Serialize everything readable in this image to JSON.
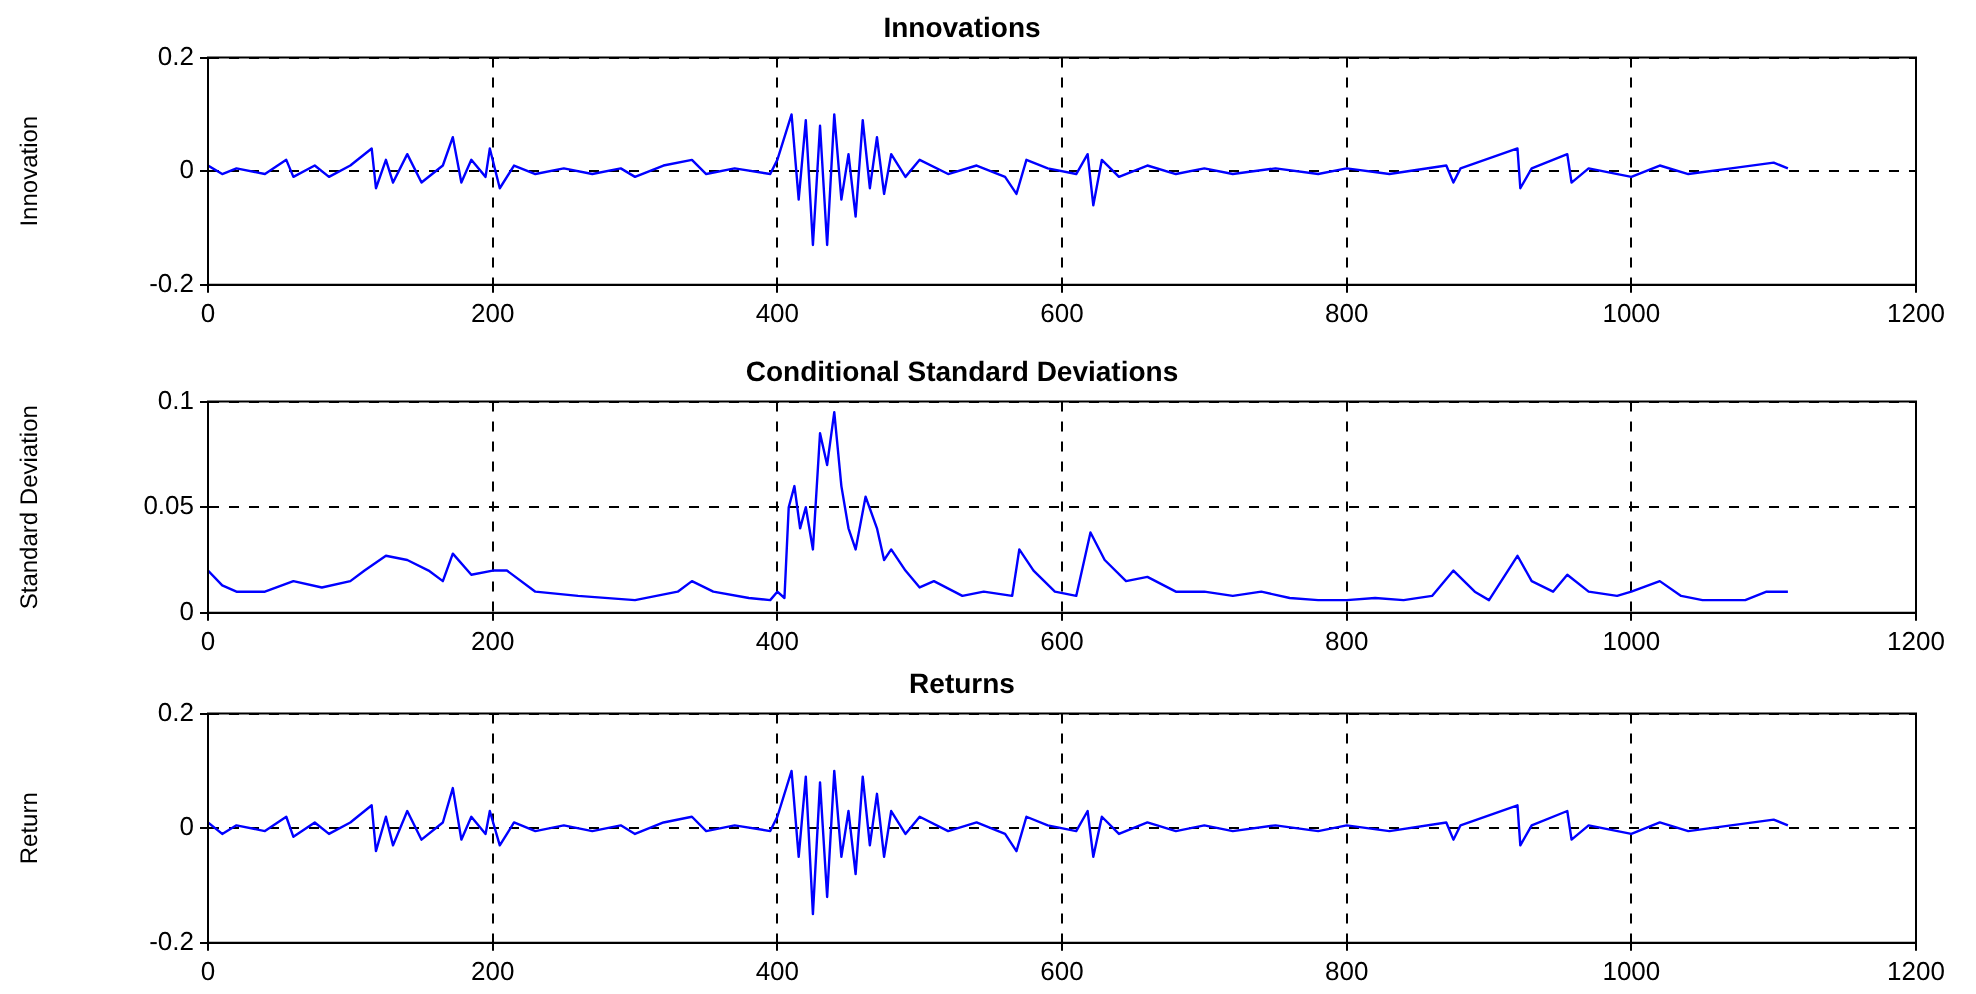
{
  "chart_data": [
    {
      "type": "line",
      "title": "Innovations",
      "ylabel": "Innovation",
      "xlim": [
        0,
        1200
      ],
      "xticks": [
        0,
        200,
        400,
        600,
        800,
        1000,
        1200
      ],
      "ylim": [
        -0.2,
        0.2
      ],
      "yticks": [
        -0.2,
        0,
        0.2
      ],
      "grid": true,
      "legend": false,
      "marker": "none",
      "line_style": "solid",
      "series": [
        {
          "color": "#0000ff",
          "x": [
            0,
            10,
            20,
            40,
            55,
            60,
            75,
            85,
            100,
            115,
            118,
            125,
            130,
            140,
            150,
            165,
            172,
            178,
            185,
            195,
            198,
            205,
            215,
            230,
            250,
            270,
            290,
            300,
            320,
            340,
            350,
            370,
            395,
            400,
            410,
            415,
            420,
            425,
            430,
            435,
            440,
            445,
            450,
            455,
            460,
            465,
            470,
            475,
            480,
            490,
            500,
            520,
            540,
            560,
            568,
            575,
            590,
            610,
            618,
            622,
            628,
            640,
            660,
            680,
            700,
            720,
            750,
            780,
            800,
            830,
            870,
            875,
            880,
            920,
            922,
            930,
            955,
            958,
            970,
            1000,
            1020,
            1040,
            1070,
            1100,
            1110
          ],
          "values": [
            0.01,
            -0.005,
            0.005,
            -0.005,
            0.02,
            -0.01,
            0.01,
            -0.01,
            0.01,
            0.04,
            -0.03,
            0.02,
            -0.02,
            0.03,
            -0.02,
            0.01,
            0.06,
            -0.02,
            0.02,
            -0.01,
            0.04,
            -0.03,
            0.01,
            -0.005,
            0.005,
            -0.005,
            0.005,
            -0.01,
            0.01,
            0.02,
            -0.005,
            0.005,
            -0.005,
            0.02,
            0.1,
            -0.05,
            0.09,
            -0.13,
            0.08,
            -0.13,
            0.1,
            -0.05,
            0.03,
            -0.08,
            0.09,
            -0.03,
            0.06,
            -0.04,
            0.03,
            -0.01,
            0.02,
            -0.005,
            0.01,
            -0.01,
            -0.04,
            0.02,
            0.005,
            -0.005,
            0.03,
            -0.06,
            0.02,
            -0.01,
            0.01,
            -0.005,
            0.005,
            -0.005,
            0.005,
            -0.005,
            0.005,
            -0.005,
            0.01,
            -0.02,
            0.005,
            0.04,
            -0.03,
            0.005,
            0.03,
            -0.02,
            0.005,
            -0.01,
            0.01,
            -0.005,
            0.005,
            0.015,
            0.005
          ]
        }
      ]
    },
    {
      "type": "line",
      "title": "Conditional Standard Deviations",
      "ylabel": "Standard Deviation",
      "xlim": [
        0,
        1200
      ],
      "xticks": [
        0,
        200,
        400,
        600,
        800,
        1000,
        1200
      ],
      "ylim": [
        0,
        0.1
      ],
      "yticks": [
        0,
        0.05,
        0.1
      ],
      "grid": true,
      "legend": false,
      "marker": "none",
      "line_style": "solid",
      "series": [
        {
          "color": "#0000ff",
          "x": [
            0,
            10,
            20,
            40,
            60,
            80,
            100,
            110,
            125,
            140,
            155,
            165,
            172,
            185,
            200,
            210,
            230,
            260,
            300,
            330,
            340,
            355,
            380,
            395,
            400,
            405,
            408,
            412,
            416,
            420,
            425,
            430,
            435,
            440,
            445,
            450,
            455,
            462,
            470,
            475,
            480,
            490,
            500,
            510,
            530,
            545,
            565,
            570,
            580,
            595,
            610,
            620,
            630,
            645,
            660,
            680,
            700,
            720,
            740,
            760,
            780,
            800,
            820,
            840,
            860,
            875,
            890,
            900,
            920,
            930,
            945,
            955,
            970,
            990,
            1000,
            1020,
            1035,
            1050,
            1080,
            1095,
            1110
          ],
          "values": [
            0.02,
            0.013,
            0.01,
            0.01,
            0.015,
            0.012,
            0.015,
            0.02,
            0.027,
            0.025,
            0.02,
            0.015,
            0.028,
            0.018,
            0.02,
            0.02,
            0.01,
            0.008,
            0.006,
            0.01,
            0.015,
            0.01,
            0.007,
            0.006,
            0.01,
            0.007,
            0.05,
            0.06,
            0.04,
            0.05,
            0.03,
            0.085,
            0.07,
            0.095,
            0.06,
            0.04,
            0.03,
            0.055,
            0.04,
            0.025,
            0.03,
            0.02,
            0.012,
            0.015,
            0.008,
            0.01,
            0.008,
            0.03,
            0.02,
            0.01,
            0.008,
            0.038,
            0.025,
            0.015,
            0.017,
            0.01,
            0.01,
            0.008,
            0.01,
            0.007,
            0.006,
            0.006,
            0.007,
            0.006,
            0.008,
            0.02,
            0.01,
            0.006,
            0.027,
            0.015,
            0.01,
            0.018,
            0.01,
            0.008,
            0.01,
            0.015,
            0.008,
            0.006,
            0.006,
            0.01,
            0.01
          ]
        }
      ]
    },
    {
      "type": "line",
      "title": "Returns",
      "ylabel": "Return",
      "xlim": [
        0,
        1200
      ],
      "xticks": [
        0,
        200,
        400,
        600,
        800,
        1000,
        1200
      ],
      "ylim": [
        -0.2,
        0.2
      ],
      "yticks": [
        -0.2,
        0,
        0.2
      ],
      "grid": true,
      "legend": false,
      "marker": "none",
      "line_style": "solid",
      "series": [
        {
          "color": "#0000ff",
          "x": [
            0,
            10,
            20,
            40,
            55,
            60,
            75,
            85,
            100,
            115,
            118,
            125,
            130,
            140,
            150,
            165,
            172,
            178,
            185,
            195,
            198,
            205,
            215,
            230,
            250,
            270,
            290,
            300,
            320,
            340,
            350,
            370,
            395,
            400,
            410,
            415,
            420,
            425,
            430,
            435,
            440,
            445,
            450,
            455,
            460,
            465,
            470,
            475,
            480,
            490,
            500,
            520,
            540,
            560,
            568,
            575,
            590,
            610,
            618,
            622,
            628,
            640,
            660,
            680,
            700,
            720,
            750,
            780,
            800,
            830,
            870,
            875,
            880,
            920,
            922,
            930,
            955,
            958,
            970,
            1000,
            1020,
            1040,
            1070,
            1100,
            1110
          ],
          "values": [
            0.01,
            -0.01,
            0.005,
            -0.005,
            0.02,
            -0.015,
            0.01,
            -0.01,
            0.01,
            0.04,
            -0.04,
            0.02,
            -0.03,
            0.03,
            -0.02,
            0.01,
            0.07,
            -0.02,
            0.02,
            -0.01,
            0.03,
            -0.03,
            0.01,
            -0.005,
            0.005,
            -0.005,
            0.005,
            -0.01,
            0.01,
            0.02,
            -0.005,
            0.005,
            -0.005,
            0.02,
            0.1,
            -0.05,
            0.09,
            -0.15,
            0.08,
            -0.12,
            0.1,
            -0.05,
            0.03,
            -0.08,
            0.09,
            -0.03,
            0.06,
            -0.05,
            0.03,
            -0.01,
            0.02,
            -0.005,
            0.01,
            -0.01,
            -0.04,
            0.02,
            0.005,
            -0.005,
            0.03,
            -0.05,
            0.02,
            -0.01,
            0.01,
            -0.005,
            0.005,
            -0.005,
            0.005,
            -0.005,
            0.005,
            -0.005,
            0.01,
            -0.02,
            0.005,
            0.04,
            -0.03,
            0.005,
            0.03,
            -0.02,
            0.005,
            -0.01,
            0.01,
            -0.005,
            0.005,
            0.015,
            0.005
          ]
        }
      ]
    }
  ]
}
